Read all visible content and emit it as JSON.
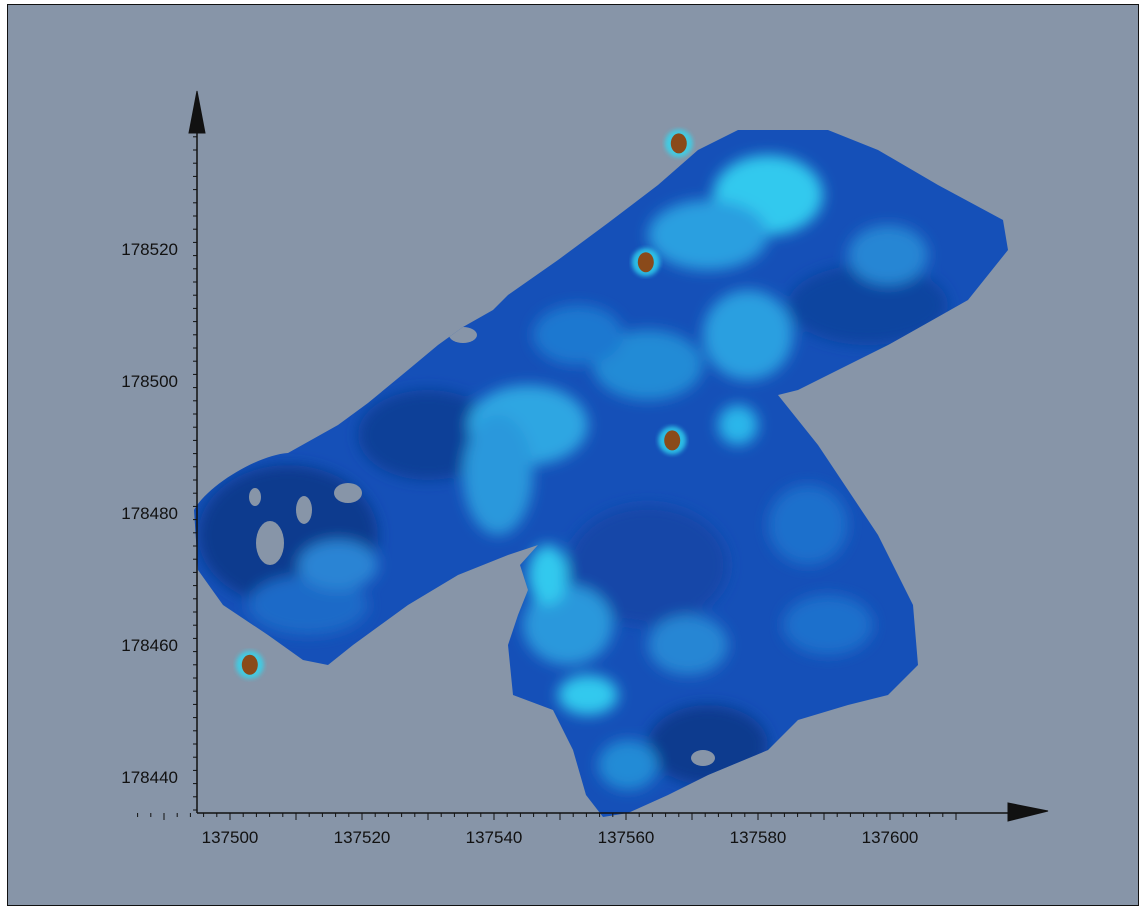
{
  "map": {
    "type": "survey-grid-heatmap",
    "colors": {
      "background": "#8795a8",
      "low": "#0a3c96",
      "mid": "#1f6fd0",
      "high": "#33d8f0",
      "anomaly": "#8a4a1a",
      "axis": "#111111"
    },
    "x_axis": {
      "range": [
        137486,
        137610
      ],
      "ticks": [
        "137500",
        "137520",
        "137540",
        "137560",
        "137580",
        "137600"
      ],
      "tick_values": [
        137500,
        137520,
        137540,
        137560,
        137580,
        137600
      ]
    },
    "y_axis": {
      "range": [
        178435,
        178537
      ],
      "ticks": [
        "178520",
        "178500",
        "178480",
        "178460",
        "178440"
      ],
      "tick_values": [
        178520,
        178500,
        178480,
        178460,
        178440
      ]
    },
    "anomalies": [
      {
        "x": 137563,
        "y": 178518
      },
      {
        "x": 137567,
        "y": 178491
      },
      {
        "x": 137568,
        "y": 178536
      },
      {
        "x": 137503,
        "y": 178457
      }
    ]
  }
}
